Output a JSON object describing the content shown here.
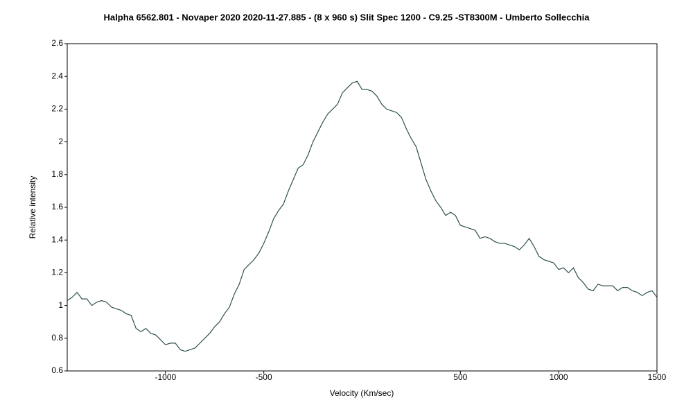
{
  "chart_data": {
    "type": "line",
    "title": "Halpha 6562.801 - Novaper 2020   2020-11-27.885 - (8 x 960 s) Slit Spec 1200 - C9.25 -ST8300M - Umberto Sollecchia",
    "x_label": "Velocity (Km/sec)",
    "y_label": "Relative intensity",
    "xlim": [
      -1500,
      1500
    ],
    "xticks": [
      -1000,
      -500,
      500,
      1000,
      1500
    ],
    "ylim": [
      0.6,
      2.6
    ],
    "yticks": [
      0.6,
      0.8,
      1,
      1.2,
      1.4,
      1.6,
      1.8,
      2,
      2.2,
      2.4,
      2.6
    ],
    "color": "#2f4f4f",
    "x": [
      -1500,
      -1475,
      -1450,
      -1425,
      -1400,
      -1375,
      -1350,
      -1325,
      -1300,
      -1275,
      -1250,
      -1225,
      -1200,
      -1175,
      -1150,
      -1125,
      -1100,
      -1075,
      -1050,
      -1025,
      -1000,
      -975,
      -950,
      -925,
      -900,
      -875,
      -850,
      -825,
      -800,
      -775,
      -750,
      -725,
      -700,
      -675,
      -650,
      -625,
      -600,
      -575,
      -550,
      -525,
      -500,
      -475,
      -450,
      -425,
      -400,
      -375,
      -350,
      -325,
      -300,
      -275,
      -250,
      -225,
      -200,
      -175,
      -150,
      -125,
      -100,
      -75,
      -50,
      -25,
      0,
      25,
      50,
      75,
      100,
      125,
      150,
      175,
      200,
      225,
      250,
      275,
      300,
      325,
      350,
      375,
      400,
      425,
      450,
      475,
      500,
      525,
      550,
      575,
      600,
      625,
      650,
      675,
      700,
      725,
      750,
      775,
      800,
      825,
      850,
      875,
      900,
      925,
      950,
      975,
      1000,
      1025,
      1050,
      1075,
      1100,
      1125,
      1150,
      1175,
      1200,
      1225,
      1250,
      1275,
      1300,
      1325,
      1350,
      1375,
      1400,
      1425,
      1450,
      1475,
      1500
    ],
    "values": [
      1.03,
      1.05,
      1.08,
      1.04,
      1.04,
      1.0,
      1.02,
      1.03,
      1.02,
      0.99,
      0.98,
      0.97,
      0.95,
      0.94,
      0.86,
      0.84,
      0.86,
      0.83,
      0.82,
      0.79,
      0.76,
      0.77,
      0.77,
      0.73,
      0.72,
      0.73,
      0.74,
      0.77,
      0.8,
      0.83,
      0.87,
      0.9,
      0.95,
      0.99,
      1.07,
      1.13,
      1.22,
      1.25,
      1.28,
      1.32,
      1.38,
      1.45,
      1.53,
      1.58,
      1.62,
      1.7,
      1.77,
      1.84,
      1.86,
      1.92,
      2.0,
      2.06,
      2.12,
      2.17,
      2.2,
      2.23,
      2.3,
      2.33,
      2.36,
      2.37,
      2.32,
      2.32,
      2.31,
      2.28,
      2.23,
      2.2,
      2.19,
      2.18,
      2.15,
      2.08,
      2.02,
      1.97,
      1.87,
      1.77,
      1.7,
      1.64,
      1.6,
      1.55,
      1.57,
      1.55,
      1.49,
      1.48,
      1.47,
      1.46,
      1.41,
      1.42,
      1.41,
      1.39,
      1.38,
      1.38,
      1.37,
      1.36,
      1.34,
      1.37,
      1.41,
      1.36,
      1.3,
      1.28,
      1.27,
      1.26,
      1.22,
      1.23,
      1.2,
      1.23,
      1.17,
      1.14,
      1.1,
      1.09,
      1.13,
      1.12,
      1.12,
      1.12,
      1.09,
      1.11,
      1.11,
      1.09,
      1.08,
      1.06,
      1.08,
      1.09,
      1.05
    ]
  }
}
